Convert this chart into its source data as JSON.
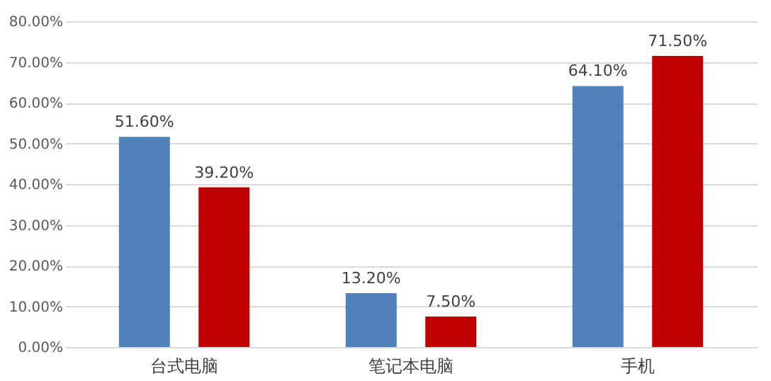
{
  "chart_data": {
    "type": "bar",
    "categories": [
      "台式电脑",
      "笔记本电脑",
      "手机"
    ],
    "series": [
      {
        "color": "#4f81bd",
        "values": [
          51.6,
          13.2,
          64.1
        ],
        "value_labels": [
          "51.60%",
          "13.20%",
          "64.10%"
        ]
      },
      {
        "color": "#c00000",
        "values": [
          39.2,
          7.5,
          71.5
        ],
        "value_labels": [
          "39.20%",
          "7.50%",
          "71.50%"
        ]
      }
    ],
    "ylim": [
      0,
      80
    ],
    "yticks": [
      {
        "value": 0,
        "label": "0.00%"
      },
      {
        "value": 10,
        "label": "10.00%"
      },
      {
        "value": 20,
        "label": "20.00%"
      },
      {
        "value": 30,
        "label": "30.00%"
      },
      {
        "value": 40,
        "label": "40.00%"
      },
      {
        "value": 50,
        "label": "50.00%"
      },
      {
        "value": 60,
        "label": "60.00%"
      },
      {
        "value": 70,
        "label": "70.00%"
      },
      {
        "value": 80,
        "label": "80.00%"
      }
    ],
    "grid": "y",
    "legend": false
  }
}
